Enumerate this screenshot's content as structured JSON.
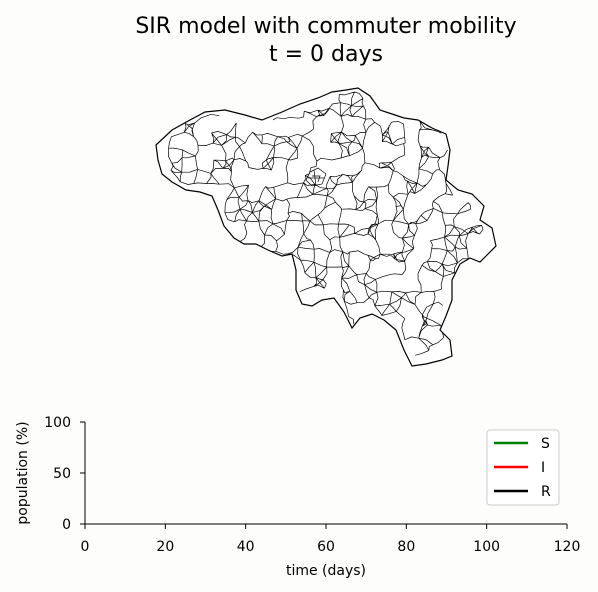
{
  "chart_data": [
    {
      "type": "map",
      "title_line1": "SIR model with commuter mobility",
      "title_line2": "t = 0 days"
    },
    {
      "type": "line",
      "xlabel": "time (days)",
      "ylabel": "population (%)",
      "xlim": [
        0,
        120
      ],
      "ylim": [
        0,
        100
      ],
      "xticks": [
        "0",
        "20",
        "40",
        "60",
        "80",
        "100",
        "120"
      ],
      "yticks": [
        "0",
        "50",
        "100"
      ],
      "grid": false,
      "legend_position": "top-right",
      "series": [
        {
          "name": "S",
          "color": "#008000",
          "x": [],
          "y": []
        },
        {
          "name": "I",
          "color": "#ff0000",
          "x": [],
          "y": []
        },
        {
          "name": "R",
          "color": "#000000",
          "x": [],
          "y": []
        }
      ]
    }
  ]
}
